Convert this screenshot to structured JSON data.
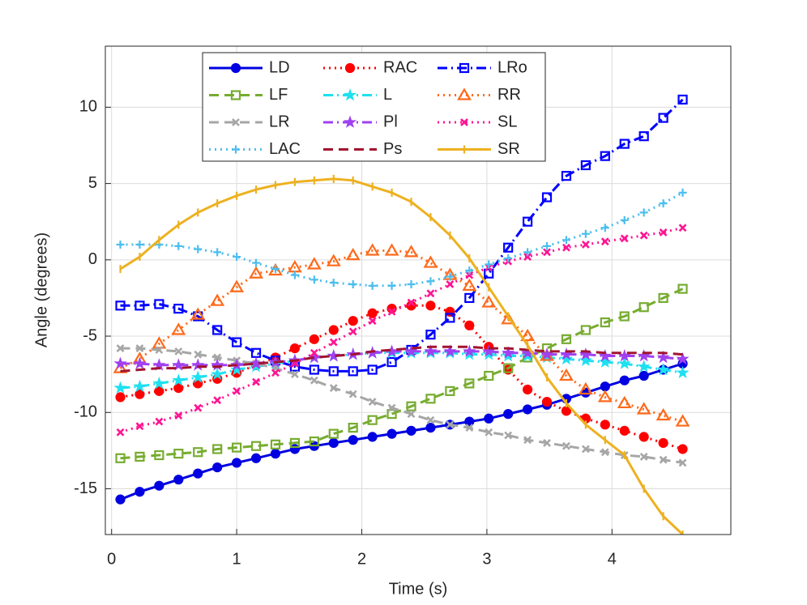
{
  "chart_data": {
    "type": "line",
    "x_label": "Time (s)",
    "y_label": "Angle (degrees)",
    "x": [
      0.07,
      0.225,
      0.38,
      0.535,
      0.69,
      0.845,
      1.0,
      1.155,
      1.31,
      1.465,
      1.62,
      1.775,
      1.93,
      2.085,
      2.24,
      2.395,
      2.55,
      2.705,
      2.86,
      3.015,
      3.17,
      3.325,
      3.48,
      3.635,
      3.79,
      3.945,
      4.1,
      4.255,
      4.41,
      4.565
    ],
    "xlim": [
      -0.05,
      4.95
    ],
    "xticks": [
      0,
      1,
      2,
      3,
      4
    ],
    "ylim": [
      -18,
      14
    ],
    "yticks": [
      -15,
      -10,
      -5,
      0,
      5,
      10
    ],
    "grid": true,
    "legend_position": "top",
    "legend_columns": 3,
    "series": [
      {
        "name": "LD",
        "color": "#0000e0",
        "linestyle": "solid",
        "marker": "circle-filled",
        "values": [
          -15.7,
          -15.2,
          -14.8,
          -14.4,
          -14.0,
          -13.6,
          -13.3,
          -13.0,
          -12.7,
          -12.4,
          -12.2,
          -12.0,
          -11.8,
          -11.6,
          -11.4,
          -11.2,
          -11.0,
          -10.8,
          -10.6,
          -10.4,
          -10.1,
          -9.8,
          -9.5,
          -9.1,
          -8.7,
          -8.3,
          -7.9,
          -7.6,
          -7.2,
          -6.8
        ]
      },
      {
        "name": "RAC",
        "color": "#ff0000",
        "linestyle": "dotted",
        "marker": "circle-filled",
        "values": [
          -9.0,
          -8.8,
          -8.6,
          -8.4,
          -8.1,
          -7.8,
          -7.4,
          -6.9,
          -6.4,
          -5.8,
          -5.2,
          -4.6,
          -4.0,
          -3.5,
          -3.2,
          -3.0,
          -3.0,
          -3.4,
          -4.3,
          -5.7,
          -7.2,
          -8.5,
          -9.3,
          -9.9,
          -10.4,
          -10.8,
          -11.2,
          -11.6,
          -12.0,
          -12.4
        ]
      },
      {
        "name": "LRo",
        "color": "#0000ff",
        "linestyle": "dashdot",
        "marker": "square",
        "values": [
          -3.0,
          -3.0,
          -2.9,
          -3.2,
          -3.7,
          -4.6,
          -5.4,
          -6.1,
          -6.6,
          -7.0,
          -7.2,
          -7.3,
          -7.3,
          -7.2,
          -6.7,
          -5.9,
          -4.9,
          -3.8,
          -2.5,
          -0.9,
          0.8,
          2.5,
          4.1,
          5.5,
          6.2,
          6.8,
          7.6,
          8.1,
          9.3,
          10.5
        ]
      },
      {
        "name": "LF",
        "color": "#77ac30",
        "linestyle": "dashed",
        "marker": "square",
        "values": [
          -13.0,
          -12.9,
          -12.8,
          -12.7,
          -12.6,
          -12.4,
          -12.3,
          -12.2,
          -12.1,
          -12.0,
          -11.9,
          -11.4,
          -11.0,
          -10.5,
          -10.1,
          -9.6,
          -9.1,
          -8.6,
          -8.1,
          -7.6,
          -7.1,
          -6.4,
          -5.8,
          -5.2,
          -4.6,
          -4.1,
          -3.7,
          -3.1,
          -2.5,
          -1.9
        ]
      },
      {
        "name": "L",
        "color": "#1ee0f0",
        "linestyle": "dashdot",
        "marker": "star",
        "values": [
          -8.4,
          -8.3,
          -8.1,
          -7.9,
          -7.7,
          -7.5,
          -7.2,
          -7.0,
          -6.8,
          -6.6,
          -6.4,
          -6.3,
          -6.2,
          -6.1,
          -6.1,
          -6.1,
          -6.1,
          -6.1,
          -6.2,
          -6.2,
          -6.3,
          -6.3,
          -6.4,
          -6.5,
          -6.6,
          -6.7,
          -6.8,
          -7.0,
          -7.2,
          -7.4
        ]
      },
      {
        "name": "RR",
        "color": "#ff6a1a",
        "linestyle": "dotted",
        "marker": "triangle",
        "values": [
          -7.1,
          -6.5,
          -5.5,
          -4.6,
          -3.6,
          -2.7,
          -1.8,
          -0.9,
          -0.7,
          -0.5,
          -0.3,
          -0.1,
          0.3,
          0.6,
          0.6,
          0.5,
          -0.2,
          -1.0,
          -1.7,
          -2.8,
          -3.9,
          -5.0,
          -6.3,
          -7.6,
          -8.5,
          -9.0,
          -9.4,
          -9.8,
          -10.2,
          -10.6
        ]
      },
      {
        "name": "LR",
        "color": "#a6a6a6",
        "linestyle": "dashed",
        "marker": "x",
        "values": [
          -5.8,
          -5.8,
          -5.9,
          -6.0,
          -6.2,
          -6.4,
          -6.6,
          -6.8,
          -7.1,
          -7.5,
          -7.9,
          -8.4,
          -8.8,
          -9.3,
          -9.7,
          -10.1,
          -10.5,
          -10.8,
          -11.0,
          -11.3,
          -11.5,
          -11.8,
          -12.0,
          -12.2,
          -12.4,
          -12.6,
          -12.8,
          -12.9,
          -13.1,
          -13.3
        ]
      },
      {
        "name": "Pl",
        "color": "#a040f0",
        "linestyle": "dashdot",
        "marker": "star",
        "values": [
          -6.8,
          -6.8,
          -6.9,
          -6.9,
          -6.9,
          -6.9,
          -6.9,
          -6.8,
          -6.7,
          -6.6,
          -6.4,
          -6.3,
          -6.2,
          -6.1,
          -6.0,
          -6.0,
          -6.0,
          -6.0,
          -6.0,
          -6.0,
          -6.1,
          -6.1,
          -6.2,
          -6.2,
          -6.2,
          -6.3,
          -6.3,
          -6.3,
          -6.4,
          -6.5
        ]
      },
      {
        "name": "SL",
        "color": "#ff1493",
        "linestyle": "dotted",
        "marker": "x",
        "values": [
          -11.3,
          -10.9,
          -10.6,
          -10.2,
          -9.7,
          -9.2,
          -8.6,
          -8.0,
          -7.4,
          -6.8,
          -6.1,
          -5.4,
          -4.7,
          -4.0,
          -3.4,
          -2.8,
          -2.2,
          -1.6,
          -1.0,
          -0.5,
          -0.1,
          0.2,
          0.5,
          0.8,
          1.0,
          1.2,
          1.4,
          1.6,
          1.8,
          2.1
        ]
      },
      {
        "name": "LAC",
        "color": "#4dbeee",
        "linestyle": "dotted",
        "marker": "plus",
        "values": [
          1.0,
          1.0,
          1.0,
          0.9,
          0.7,
          0.5,
          0.2,
          -0.2,
          -0.6,
          -1.0,
          -1.3,
          -1.5,
          -1.6,
          -1.7,
          -1.7,
          -1.6,
          -1.4,
          -1.1,
          -0.7,
          -0.3,
          0.1,
          0.5,
          0.9,
          1.3,
          1.7,
          2.1,
          2.6,
          3.1,
          3.7,
          4.4
        ]
      },
      {
        "name": "Ps",
        "color": "#a2142f",
        "linestyle": "dashed",
        "marker": "none",
        "values": [
          -7.3,
          -7.2,
          -7.1,
          -7.1,
          -7.0,
          -7.0,
          -6.9,
          -6.8,
          -6.7,
          -6.6,
          -6.4,
          -6.3,
          -6.2,
          -6.0,
          -5.9,
          -5.8,
          -5.7,
          -5.7,
          -5.7,
          -5.8,
          -5.8,
          -5.9,
          -6.0,
          -6.0,
          -6.0,
          -6.1,
          -6.1,
          -6.1,
          -6.1,
          -6.2
        ]
      },
      {
        "name": "SR",
        "color": "#edb120",
        "linestyle": "solid",
        "marker": "bar",
        "values": [
          -0.6,
          0.2,
          1.3,
          2.3,
          3.1,
          3.7,
          4.2,
          4.6,
          4.9,
          5.1,
          5.2,
          5.3,
          5.2,
          4.8,
          4.4,
          3.8,
          2.8,
          1.6,
          0.1,
          -1.8,
          -3.7,
          -5.6,
          -7.7,
          -9.4,
          -10.8,
          -11.8,
          -12.8,
          -15.0,
          -16.8,
          -18.0
        ]
      }
    ]
  }
}
